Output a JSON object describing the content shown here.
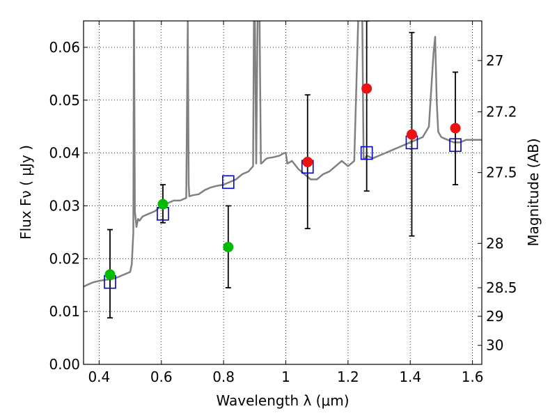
{
  "chart_data": {
    "type": "scatter",
    "xlabel": "Wavelength  λ (μm)",
    "ylabel": "Flux  Fν  ( μJy )",
    "ylabel_right": "Magnitude (AB)",
    "xlim": [
      0.35,
      1.63
    ],
    "ylim": [
      0.0,
      0.065
    ],
    "x_ticks": [
      0.4,
      0.6,
      0.8,
      1.0,
      1.2,
      1.4,
      1.6
    ],
    "x_tick_labels": [
      "0.4",
      "0.6",
      "0.8",
      "1",
      "1.2",
      "1.4",
      "1.6"
    ],
    "y_ticks": [
      0.0,
      0.01,
      0.02,
      0.03,
      0.04,
      0.05,
      0.06
    ],
    "y_tick_labels": [
      "0.00",
      "0.01",
      "0.02",
      "0.03",
      "0.04",
      "0.05",
      "0.06"
    ],
    "right_ticks": [
      {
        "label": "27",
        "flux": 0.0575
      },
      {
        "label": "27.2",
        "flux": 0.0478
      },
      {
        "label": "27.5",
        "flux": 0.0363
      },
      {
        "label": "28",
        "flux": 0.0229
      },
      {
        "label": "28.5",
        "flux": 0.0145
      },
      {
        "label": "29",
        "flux": 0.0091
      },
      {
        "label": "30",
        "flux": 0.0036
      }
    ],
    "grid": true,
    "colors": {
      "spectrum": "#808080",
      "model_square": "#0000cc",
      "green_points": "#00bb00",
      "red_points": "#ee1111",
      "errorbar": "#000000"
    },
    "spectrum": {
      "x": [
        0.35,
        0.36,
        0.38,
        0.4,
        0.42,
        0.44,
        0.46,
        0.48,
        0.5,
        0.505,
        0.51,
        0.512,
        0.515,
        0.52,
        0.525,
        0.53,
        0.54,
        0.56,
        0.58,
        0.6,
        0.62,
        0.64,
        0.66,
        0.68,
        0.685,
        0.688,
        0.69,
        0.7,
        0.72,
        0.74,
        0.76,
        0.78,
        0.8,
        0.82,
        0.84,
        0.86,
        0.88,
        0.895,
        0.898,
        0.9,
        0.905,
        0.91,
        0.915,
        0.92,
        0.925,
        0.93,
        0.935,
        0.94,
        0.96,
        0.98,
        0.995,
        1.0,
        1.005,
        1.02,
        1.04,
        1.06,
        1.08,
        1.1,
        1.12,
        1.14,
        1.16,
        1.18,
        1.2,
        1.22,
        1.235,
        1.24,
        1.245,
        1.25,
        1.255,
        1.26,
        1.28,
        1.3,
        1.32,
        1.34,
        1.36,
        1.38,
        1.4,
        1.42,
        1.44,
        1.46,
        1.475,
        1.48,
        1.485,
        1.49,
        1.5,
        1.52,
        1.54,
        1.56,
        1.58,
        1.6,
        1.63
      ],
      "y": [
        0.0147,
        0.015,
        0.0155,
        0.0158,
        0.016,
        0.0161,
        0.0165,
        0.017,
        0.0175,
        0.019,
        0.025,
        0.07,
        0.029,
        0.026,
        0.0275,
        0.0272,
        0.028,
        0.0285,
        0.029,
        0.03,
        0.0305,
        0.031,
        0.031,
        0.0315,
        0.065,
        0.034,
        0.0318,
        0.032,
        0.0322,
        0.033,
        0.0335,
        0.0338,
        0.034,
        0.0345,
        0.035,
        0.036,
        0.0365,
        0.0375,
        0.07,
        0.07,
        0.038,
        0.07,
        0.07,
        0.038,
        0.0382,
        0.0385,
        0.0388,
        0.039,
        0.0392,
        0.0395,
        0.04,
        0.04,
        0.038,
        0.0385,
        0.037,
        0.036,
        0.035,
        0.035,
        0.036,
        0.0365,
        0.0375,
        0.0385,
        0.0375,
        0.0385,
        0.07,
        0.07,
        0.07,
        0.039,
        0.039,
        0.0395,
        0.039,
        0.0395,
        0.04,
        0.0405,
        0.041,
        0.0415,
        0.042,
        0.0425,
        0.043,
        0.045,
        0.059,
        0.062,
        0.05,
        0.044,
        0.043,
        0.0425,
        0.042,
        0.042,
        0.0425,
        0.0425,
        0.0425
      ]
    },
    "model_squares": {
      "x": [
        0.435,
        0.605,
        0.815,
        1.07,
        1.26,
        1.405,
        1.545
      ],
      "y": [
        0.0156,
        0.0285,
        0.0345,
        0.0374,
        0.04,
        0.042,
        0.0415
      ]
    },
    "observed_green": {
      "x": [
        0.435,
        0.605,
        0.815
      ],
      "y": [
        0.017,
        0.0303,
        0.0222
      ],
      "err_lo": [
        0.0088,
        0.0268,
        0.0145
      ],
      "err_hi": [
        0.0255,
        0.034,
        0.03
      ]
    },
    "observed_red": {
      "x": [
        1.07,
        1.26,
        1.405,
        1.545
      ],
      "y": [
        0.0383,
        0.0522,
        0.0435,
        0.0447
      ],
      "err_lo": [
        0.0257,
        0.0328,
        0.0243,
        0.034
      ],
      "err_hi": [
        0.051,
        0.065,
        0.0628,
        0.0553
      ]
    }
  }
}
